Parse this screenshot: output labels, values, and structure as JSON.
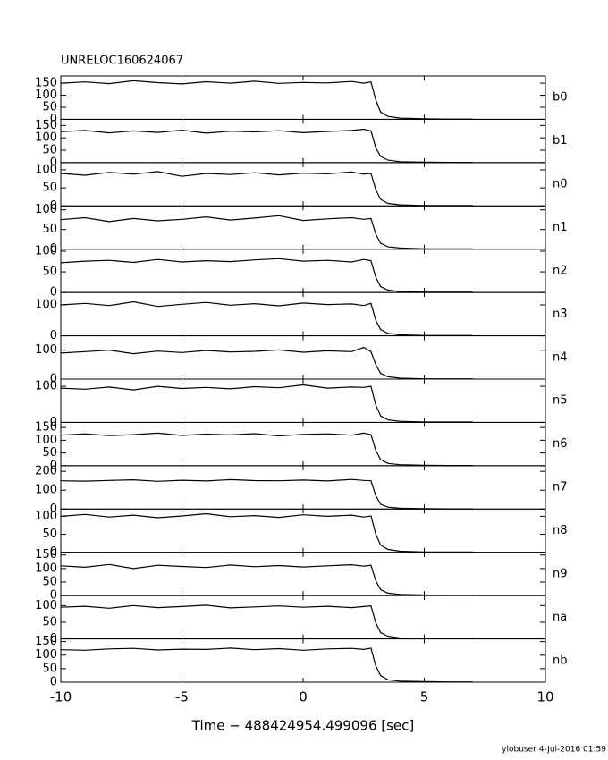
{
  "footer": "ylobuser  4-Jul-2016 01:59",
  "chart_data": [
    {
      "type": "line",
      "title": "UNRELOC160624067",
      "label": "b0",
      "xlim": [
        -10,
        10
      ],
      "ylim": [
        0,
        180
      ],
      "yticks": [
        0,
        50,
        100,
        150
      ],
      "x": [
        -10,
        -9,
        -8,
        -7,
        -6,
        -5,
        -4,
        -3,
        -2,
        -1,
        0,
        1,
        2,
        2.5,
        2.8,
        3,
        3.2,
        3.5,
        4,
        5,
        6,
        7
      ],
      "values": [
        150,
        155,
        148,
        160,
        152,
        147,
        156,
        150,
        158,
        149,
        153,
        151,
        157,
        150,
        155,
        80,
        30,
        12,
        5,
        2,
        1,
        1
      ]
    },
    {
      "type": "line",
      "label": "b1",
      "xlim": [
        -10,
        10
      ],
      "ylim": [
        0,
        175
      ],
      "yticks": [
        0,
        50,
        100,
        150
      ],
      "x": [
        -10,
        -9,
        -8,
        -7,
        -6,
        -5,
        -4,
        -3,
        -2,
        -1,
        0,
        1,
        2,
        2.5,
        2.8,
        3,
        3.2,
        3.5,
        4,
        5,
        6,
        7
      ],
      "values": [
        125,
        130,
        120,
        128,
        122,
        131,
        119,
        127,
        124,
        129,
        121,
        126,
        130,
        135,
        128,
        60,
        25,
        10,
        4,
        2,
        1,
        1
      ]
    },
    {
      "type": "line",
      "label": "n0",
      "xlim": [
        -10,
        10
      ],
      "ylim": [
        0,
        120
      ],
      "yticks": [
        0,
        50,
        100
      ],
      "x": [
        -10,
        -9,
        -8,
        -7,
        -6,
        -5,
        -4,
        -3,
        -2,
        -1,
        0,
        1,
        2,
        2.5,
        2.8,
        3,
        3.2,
        3.5,
        4,
        5,
        6,
        7
      ],
      "values": [
        90,
        85,
        93,
        88,
        95,
        82,
        90,
        87,
        92,
        86,
        91,
        89,
        94,
        88,
        90,
        45,
        18,
        7,
        3,
        1,
        1,
        1
      ]
    },
    {
      "type": "line",
      "label": "n1",
      "xlim": [
        -10,
        10
      ],
      "ylim": [
        0,
        110
      ],
      "yticks": [
        0,
        50,
        100
      ],
      "x": [
        -10,
        -9,
        -8,
        -7,
        -6,
        -5,
        -4,
        -3,
        -2,
        -1,
        0,
        1,
        2,
        2.5,
        2.8,
        3,
        3.2,
        3.5,
        4,
        5,
        6,
        7
      ],
      "values": [
        75,
        80,
        70,
        78,
        72,
        76,
        82,
        74,
        79,
        85,
        73,
        77,
        80,
        76,
        78,
        38,
        15,
        6,
        3,
        1,
        1,
        1
      ]
    },
    {
      "type": "line",
      "label": "n2",
      "xlim": [
        -10,
        10
      ],
      "ylim": [
        0,
        105
      ],
      "yticks": [
        0,
        50,
        100
      ],
      "x": [
        -10,
        -9,
        -8,
        -7,
        -6,
        -5,
        -4,
        -3,
        -2,
        -1,
        0,
        1,
        2,
        2.5,
        2.8,
        3,
        3.2,
        3.5,
        4,
        5,
        6,
        7
      ],
      "values": [
        72,
        76,
        78,
        73,
        80,
        74,
        77,
        75,
        79,
        82,
        76,
        78,
        74,
        80,
        77,
        37,
        14,
        6,
        2,
        1,
        1,
        1
      ]
    },
    {
      "type": "line",
      "label": "n3",
      "xlim": [
        -10,
        10
      ],
      "ylim": [
        0,
        140
      ],
      "yticks": [
        0,
        100
      ],
      "x": [
        -10,
        -9,
        -8,
        -7,
        -6,
        -5,
        -4,
        -3,
        -2,
        -1,
        0,
        1,
        2,
        2.5,
        2.8,
        3,
        3.2,
        3.5,
        4,
        5,
        6,
        7
      ],
      "values": [
        100,
        105,
        98,
        110,
        95,
        102,
        108,
        99,
        104,
        97,
        106,
        101,
        103,
        98,
        105,
        50,
        20,
        8,
        3,
        1,
        1,
        1
      ]
    },
    {
      "type": "line",
      "label": "n4",
      "xlim": [
        -10,
        10
      ],
      "ylim": [
        0,
        150
      ],
      "yticks": [
        0,
        100
      ],
      "x": [
        -10,
        -9,
        -8,
        -7,
        -6,
        -5,
        -4,
        -3,
        -2,
        -1,
        0,
        1,
        2,
        2.5,
        2.8,
        3,
        3.2,
        3.5,
        4,
        5,
        6,
        7
      ],
      "values": [
        90,
        95,
        100,
        88,
        97,
        92,
        99,
        94,
        96,
        101,
        93,
        98,
        95,
        110,
        95,
        50,
        20,
        8,
        3,
        1,
        1,
        1
      ]
    },
    {
      "type": "line",
      "label": "n5",
      "xlim": [
        -10,
        10
      ],
      "ylim": [
        0,
        120
      ],
      "yticks": [
        0,
        100
      ],
      "x": [
        -10,
        -9,
        -8,
        -7,
        -6,
        -5,
        -4,
        -3,
        -2,
        -1,
        0,
        1,
        2,
        2.5,
        2.8,
        3,
        3.2,
        3.5,
        4,
        5,
        6,
        7
      ],
      "values": [
        95,
        92,
        98,
        90,
        100,
        94,
        97,
        93,
        99,
        96,
        104,
        95,
        98,
        97,
        100,
        48,
        18,
        7,
        3,
        1,
        1,
        1
      ]
    },
    {
      "type": "line",
      "label": "n6",
      "xlim": [
        -10,
        10
      ],
      "ylim": [
        0,
        170
      ],
      "yticks": [
        0,
        50,
        100,
        150
      ],
      "x": [
        -10,
        -9,
        -8,
        -7,
        -6,
        -5,
        -4,
        -3,
        -2,
        -1,
        0,
        1,
        2,
        2.5,
        2.8,
        3,
        3.2,
        3.5,
        4,
        5,
        6,
        7
      ],
      "values": [
        120,
        125,
        118,
        122,
        128,
        119,
        124,
        121,
        126,
        117,
        123,
        125,
        120,
        128,
        122,
        60,
        24,
        9,
        4,
        2,
        1,
        1
      ]
    },
    {
      "type": "line",
      "label": "n7",
      "xlim": [
        -10,
        10
      ],
      "ylim": [
        0,
        230
      ],
      "yticks": [
        0,
        100,
        200
      ],
      "x": [
        -10,
        -9,
        -8,
        -7,
        -6,
        -5,
        -4,
        -3,
        -2,
        -1,
        0,
        1,
        2,
        2.5,
        2.8,
        3,
        3.2,
        3.5,
        4,
        5,
        6,
        7
      ],
      "values": [
        150,
        148,
        152,
        155,
        147,
        153,
        149,
        156,
        151,
        150,
        154,
        149,
        157,
        152,
        150,
        70,
        25,
        10,
        4,
        2,
        1,
        1
      ]
    },
    {
      "type": "line",
      "label": "n8",
      "xlim": [
        -10,
        10
      ],
      "ylim": [
        0,
        120
      ],
      "yticks": [
        0,
        50,
        100
      ],
      "x": [
        -10,
        -9,
        -8,
        -7,
        -6,
        -5,
        -4,
        -3,
        -2,
        -1,
        0,
        1,
        2,
        2.5,
        2.8,
        3,
        3.2,
        3.5,
        4,
        5,
        6,
        7
      ],
      "values": [
        100,
        105,
        98,
        103,
        96,
        101,
        107,
        99,
        102,
        97,
        104,
        100,
        103,
        98,
        101,
        50,
        20,
        8,
        3,
        1,
        1,
        1
      ]
    },
    {
      "type": "line",
      "label": "n9",
      "xlim": [
        -10,
        10
      ],
      "ylim": [
        0,
        160
      ],
      "yticks": [
        0,
        50,
        100,
        150
      ],
      "x": [
        -10,
        -9,
        -8,
        -7,
        -6,
        -5,
        -4,
        -3,
        -2,
        -1,
        0,
        1,
        2,
        2.5,
        2.8,
        3,
        3.2,
        3.5,
        4,
        5,
        6,
        7
      ],
      "values": [
        110,
        105,
        115,
        100,
        112,
        108,
        104,
        113,
        107,
        111,
        106,
        110,
        114,
        109,
        112,
        55,
        22,
        9,
        4,
        2,
        1,
        1
      ]
    },
    {
      "type": "line",
      "label": "na",
      "xlim": [
        -10,
        10
      ],
      "ylim": [
        0,
        130
      ],
      "yticks": [
        0,
        50,
        100
      ],
      "x": [
        -10,
        -9,
        -8,
        -7,
        -6,
        -5,
        -4,
        -3,
        -2,
        -1,
        0,
        1,
        2,
        2.5,
        2.8,
        3,
        3.2,
        3.5,
        4,
        5,
        6,
        7
      ],
      "values": [
        95,
        98,
        92,
        100,
        94,
        97,
        101,
        93,
        96,
        99,
        95,
        98,
        94,
        97,
        99,
        48,
        19,
        8,
        3,
        1,
        1,
        1
      ]
    },
    {
      "type": "line",
      "label": "nb",
      "xlim": [
        -10,
        10
      ],
      "ylim": [
        0,
        160
      ],
      "yticks": [
        0,
        50,
        100,
        150
      ],
      "x": [
        -10,
        -9,
        -8,
        -7,
        -6,
        -5,
        -4,
        -3,
        -2,
        -1,
        0,
        1,
        2,
        2.5,
        2.8,
        3,
        3.2,
        3.5,
        4,
        5,
        6,
        7
      ],
      "values": [
        120,
        118,
        123,
        125,
        119,
        122,
        121,
        126,
        120,
        124,
        118,
        123,
        125,
        121,
        126,
        60,
        24,
        9,
        4,
        2,
        1,
        1
      ],
      "xticks": [
        -10,
        -5,
        0,
        5,
        10
      ],
      "xlabel": "Time − 488424954.499096 [sec]"
    }
  ]
}
